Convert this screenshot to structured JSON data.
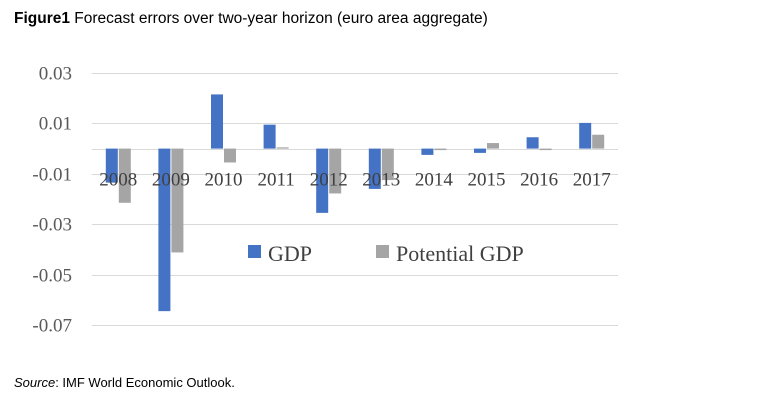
{
  "figure_label": "Figure1",
  "figure_title": "Forecast errors over two-year horizon (euro area aggregate)",
  "source_label": "Source",
  "source_text": ": IMF World Economic Outlook.",
  "colors": {
    "gdp": "#4472C4",
    "potential": "#A5A5A5",
    "grid": "#D9D9D9"
  },
  "chart_data": {
    "type": "bar",
    "title": "Forecast errors over two-year horizon (euro area aggregate)",
    "xlabel": "",
    "ylabel": "",
    "ylim": [
      -0.07,
      0.03
    ],
    "yticks": [
      0.03,
      0.01,
      -0.01,
      -0.03,
      -0.05,
      -0.07
    ],
    "ytick_labels": [
      "0.03",
      "0.01",
      "-0.01",
      "-0.03",
      "-0.05",
      "-0.07"
    ],
    "grid": true,
    "legend_position": "lower-center",
    "categories": [
      "2008",
      "2009",
      "2010",
      "2011",
      "2012",
      "2013",
      "2014",
      "2015",
      "2016",
      "2017"
    ],
    "series": [
      {
        "name": "GDP",
        "values": [
          -0.0135,
          -0.0645,
          0.0215,
          0.0095,
          -0.0255,
          -0.016,
          -0.0025,
          -0.0017,
          0.0045,
          0.0102
        ]
      },
      {
        "name": "Potential GDP",
        "values": [
          -0.0215,
          -0.0412,
          -0.0055,
          0.0005,
          -0.0178,
          -0.0125,
          -0.0006,
          0.0022,
          -0.0006,
          0.0055
        ]
      }
    ]
  }
}
